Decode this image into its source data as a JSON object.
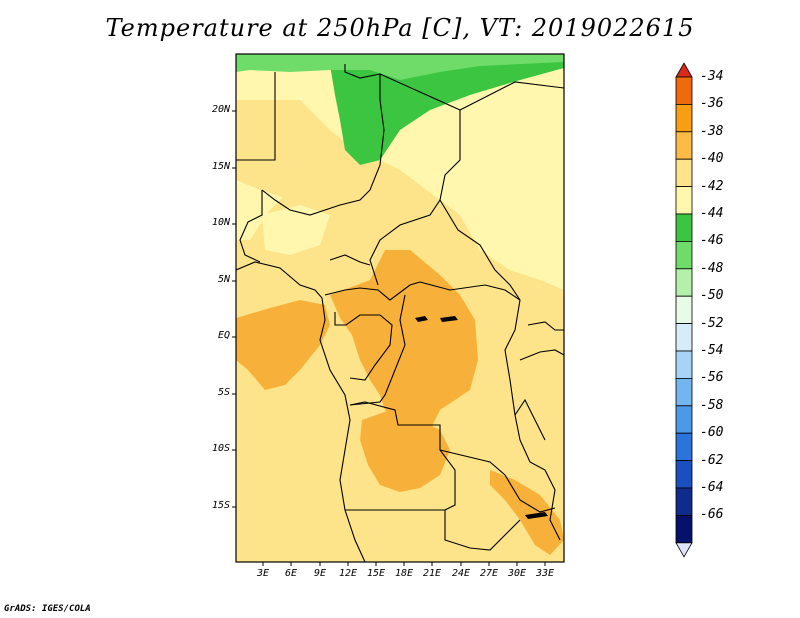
{
  "title": "Temperature at 250hPa [C], VT: 2019022615",
  "footer": "GrADS: IGES/COLA",
  "map": {
    "lat_labels": [
      "20N",
      "15N",
      "10N",
      "5N",
      "EQ",
      "5S",
      "10S",
      "15S"
    ],
    "lon_labels": [
      "3E",
      "6E",
      "9E",
      "12E",
      "15E",
      "18E",
      "21E",
      "24E",
      "27E",
      "30E",
      "33E"
    ]
  },
  "colorbar": {
    "labels": [
      "-34",
      "-36",
      "-38",
      "-40",
      "-42",
      "-44",
      "-46",
      "-48",
      "-50",
      "-52",
      "-54",
      "-56",
      "-58",
      "-60",
      "-62",
      "-64",
      "-66"
    ],
    "colors": [
      "#d92a1a",
      "#ef6a0c",
      "#f79e13",
      "#fbbb44",
      "#fde48a",
      "#fff7ae",
      "#3cc540",
      "#6fdc6a",
      "#b4f0aa",
      "#e7fbe6",
      "#d6ecfb",
      "#a6d3f6",
      "#73b5ef",
      "#4c99e8",
      "#2a74db",
      "#1b4fc0",
      "#0f2c8c",
      "#05116a",
      "#e0e4fb"
    ]
  }
}
